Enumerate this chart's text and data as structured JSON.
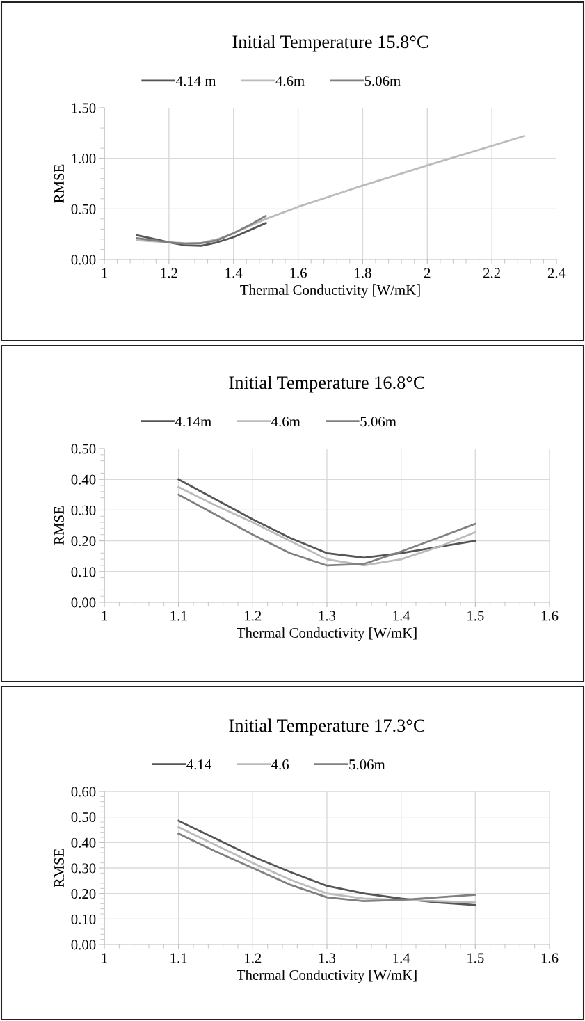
{
  "chart_data": [
    {
      "type": "line",
      "title": "Initial Temperature 15.8°C",
      "xlabel": "Thermal Conductivity [W/mK]",
      "ylabel": "RMSE",
      "legend": "top",
      "grid": true,
      "marker": "none",
      "line_style": "solid",
      "xlim": [
        1,
        2.4
      ],
      "xticks": [
        1,
        1.2,
        1.4,
        1.6,
        1.8,
        2,
        2.2,
        2.4
      ],
      "ylim": [
        0,
        1.5
      ],
      "yticks": [
        {
          "value": 0,
          "label": "0.00"
        },
        {
          "value": 0.5,
          "label": "0.50"
        },
        {
          "value": 1.0,
          "label": "1.00"
        },
        {
          "value": 1.5,
          "label": "1.50"
        }
      ],
      "series": [
        {
          "name": "4.14 m",
          "color": "#555555",
          "x": [
            1.1,
            1.15,
            1.2,
            1.25,
            1.3,
            1.35,
            1.4,
            1.45,
            1.5
          ],
          "values": [
            0.24,
            0.205,
            0.17,
            0.14,
            0.135,
            0.17,
            0.22,
            0.29,
            0.36
          ]
        },
        {
          "name": "4.6m",
          "color": "#bbbbbb",
          "x": [
            1.1,
            1.15,
            1.2,
            1.25,
            1.3,
            1.35,
            1.4,
            1.45,
            1.5,
            1.6,
            1.8,
            2.0,
            2.3
          ],
          "values": [
            0.19,
            0.18,
            0.17,
            0.16,
            0.165,
            0.2,
            0.26,
            0.33,
            0.4,
            0.52,
            0.73,
            0.93,
            1.22
          ]
        },
        {
          "name": "5.06m",
          "color": "#808080",
          "x": [
            1.1,
            1.15,
            1.2,
            1.25,
            1.3,
            1.35,
            1.4,
            1.45,
            1.5
          ],
          "values": [
            0.21,
            0.19,
            0.17,
            0.155,
            0.16,
            0.19,
            0.26,
            0.34,
            0.43
          ]
        }
      ]
    },
    {
      "type": "line",
      "title": "Initial Temperature 16.8°C",
      "xlabel": "Thermal Conductivity [W/mK]",
      "ylabel": "RMSE",
      "legend": "top",
      "grid": true,
      "marker": "none",
      "line_style": "solid",
      "xlim": [
        1,
        1.6
      ],
      "xticks": [
        1,
        1.1,
        1.2,
        1.3,
        1.4,
        1.5,
        1.6
      ],
      "ylim": [
        0,
        0.5
      ],
      "yticks": [
        {
          "value": 0,
          "label": "0.00"
        },
        {
          "value": 0.1,
          "label": "0.10"
        },
        {
          "value": 0.2,
          "label": "0.20"
        },
        {
          "value": 0.3,
          "label": "0.30"
        },
        {
          "value": 0.4,
          "label": "0.40"
        },
        {
          "value": 0.5,
          "label": "0.50"
        }
      ],
      "series": [
        {
          "name": "4.14m",
          "color": "#555555",
          "x": [
            1.1,
            1.15,
            1.2,
            1.25,
            1.3,
            1.35,
            1.4,
            1.45,
            1.5
          ],
          "values": [
            0.4,
            0.335,
            0.27,
            0.21,
            0.16,
            0.145,
            0.16,
            0.18,
            0.2
          ]
        },
        {
          "name": "4.6m",
          "color": "#bbbbbb",
          "x": [
            1.1,
            1.15,
            1.2,
            1.25,
            1.3,
            1.35,
            1.4,
            1.45,
            1.5
          ],
          "values": [
            0.375,
            0.315,
            0.26,
            0.2,
            0.14,
            0.12,
            0.14,
            0.18,
            0.228
          ]
        },
        {
          "name": "5.06m",
          "color": "#808080",
          "x": [
            1.1,
            1.15,
            1.2,
            1.25,
            1.3,
            1.35,
            1.4,
            1.45,
            1.5
          ],
          "values": [
            0.35,
            0.285,
            0.22,
            0.16,
            0.12,
            0.125,
            0.165,
            0.21,
            0.255
          ]
        }
      ]
    },
    {
      "type": "line",
      "title": "Initial Temperature 17.3°C",
      "xlabel": "Thermal Conductivity [W/mK]",
      "ylabel": "RMSE",
      "legend": "top",
      "grid": true,
      "marker": "none",
      "line_style": "solid",
      "xlim": [
        1,
        1.6
      ],
      "xticks": [
        1,
        1.1,
        1.2,
        1.3,
        1.4,
        1.5,
        1.6
      ],
      "ylim": [
        0,
        0.6
      ],
      "yticks": [
        {
          "value": 0,
          "label": "0.00"
        },
        {
          "value": 0.1,
          "label": "0.10"
        },
        {
          "value": 0.2,
          "label": "0.20"
        },
        {
          "value": 0.3,
          "label": "0.30"
        },
        {
          "value": 0.4,
          "label": "0.40"
        },
        {
          "value": 0.5,
          "label": "0.50"
        },
        {
          "value": 0.6,
          "label": "0.60"
        }
      ],
      "series": [
        {
          "name": "4.14",
          "color": "#555555",
          "x": [
            1.1,
            1.15,
            1.2,
            1.25,
            1.3,
            1.35,
            1.4,
            1.45,
            1.5
          ],
          "values": [
            0.485,
            0.415,
            0.345,
            0.285,
            0.23,
            0.2,
            0.18,
            0.165,
            0.155
          ]
        },
        {
          "name": "4.6",
          "color": "#bbbbbb",
          "x": [
            1.1,
            1.15,
            1.2,
            1.25,
            1.3,
            1.35,
            1.4,
            1.45,
            1.5
          ],
          "values": [
            0.46,
            0.39,
            0.32,
            0.255,
            0.2,
            0.18,
            0.175,
            0.17,
            0.165
          ]
        },
        {
          "name": "5.06m",
          "color": "#808080",
          "x": [
            1.1,
            1.15,
            1.2,
            1.25,
            1.3,
            1.35,
            1.4,
            1.45,
            1.5
          ],
          "values": [
            0.435,
            0.365,
            0.3,
            0.235,
            0.185,
            0.17,
            0.175,
            0.185,
            0.195
          ]
        }
      ]
    }
  ]
}
